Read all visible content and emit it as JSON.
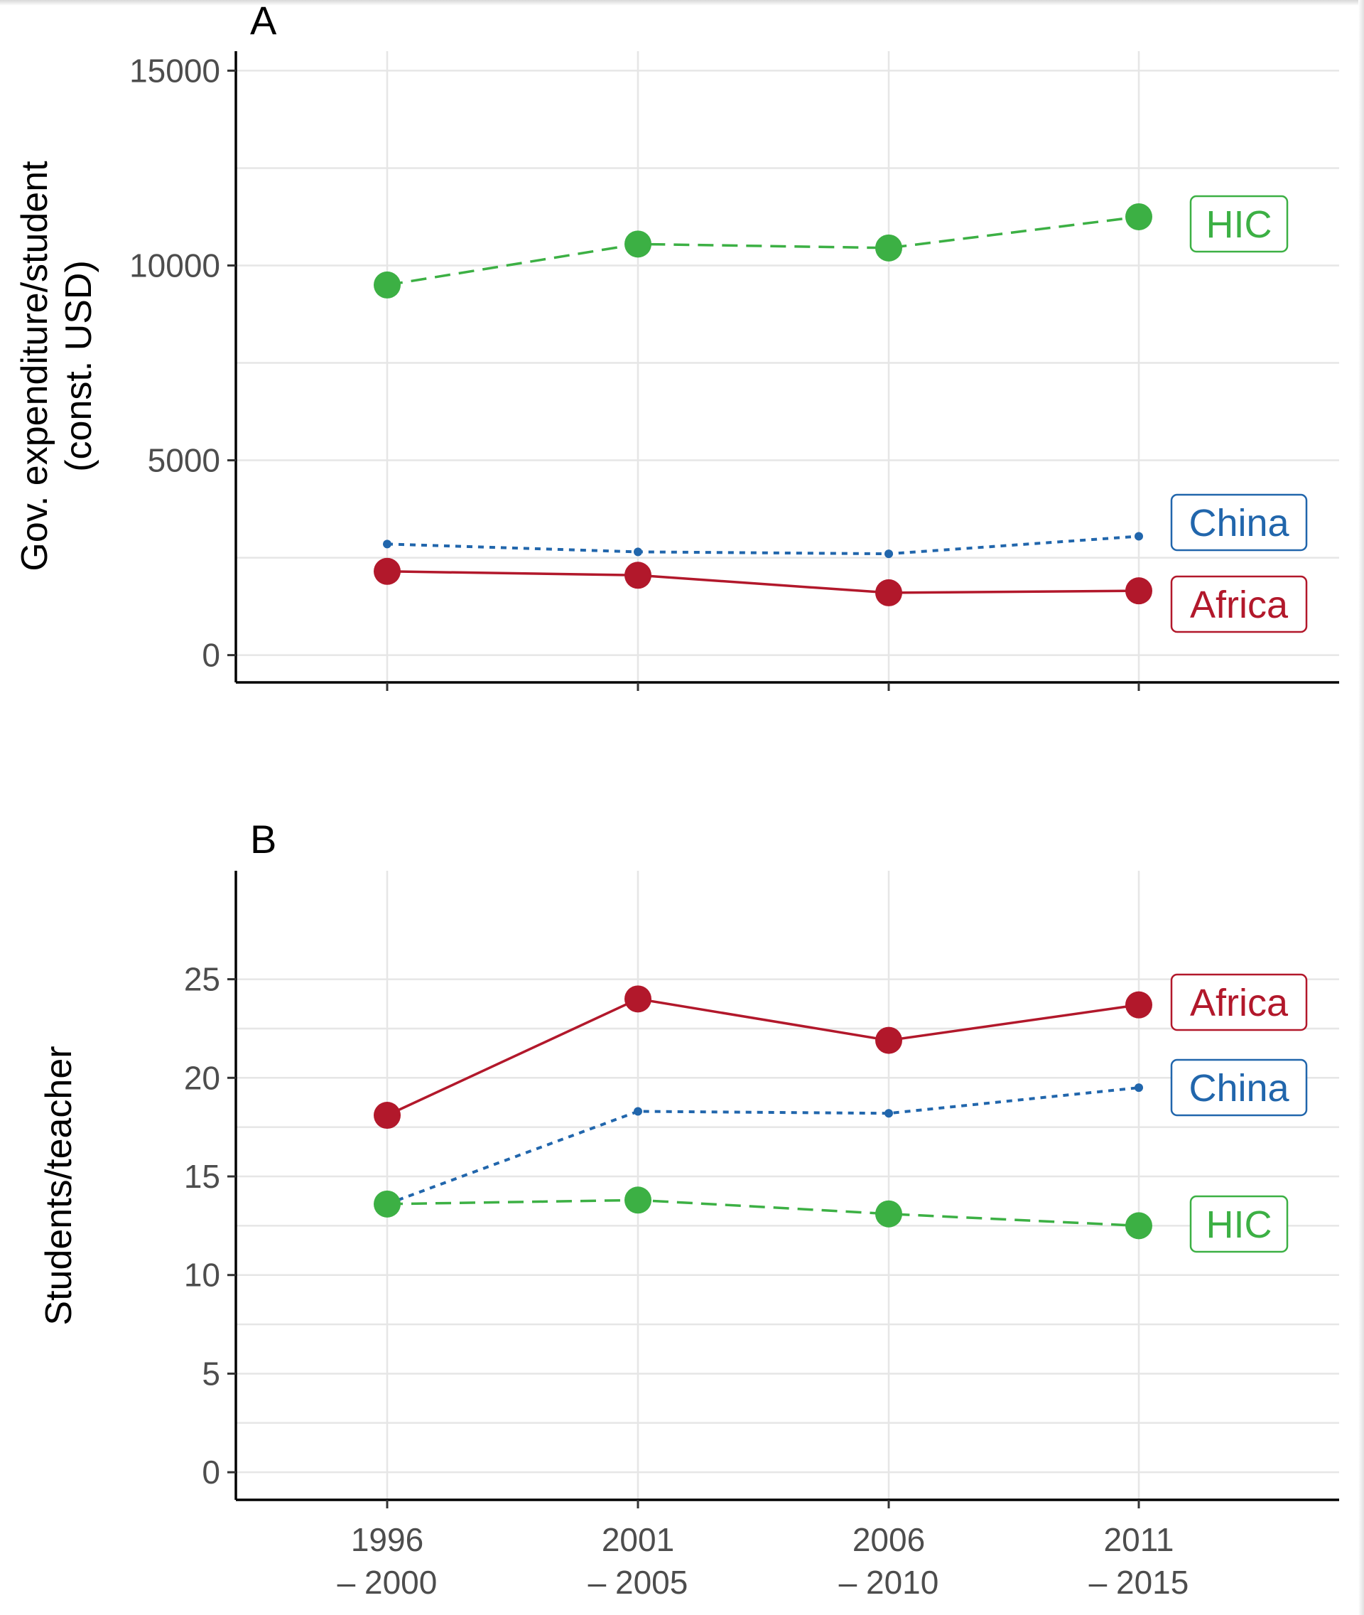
{
  "chart_data": [
    {
      "type": "line",
      "panel": "A",
      "ylabel_lines": [
        "Gov. expenditure/student",
        "(const. USD)"
      ],
      "xlabel": "",
      "categories": [
        [
          "1996",
          "– 2000"
        ],
        [
          "2001",
          "– 2005"
        ],
        [
          "2006",
          "– 2010"
        ],
        [
          "2011",
          "– 2015"
        ]
      ],
      "ylim": [
        -700,
        15500
      ],
      "yticks": [
        0,
        5000,
        10000,
        15000
      ],
      "grid": true,
      "series": [
        {
          "name": "HIC",
          "color": "#3cb044",
          "dash": "dashed",
          "marker": "large",
          "values": [
            9500,
            10550,
            10450,
            11250
          ]
        },
        {
          "name": "China",
          "color": "#2166ac",
          "dash": "dotted",
          "marker": "small",
          "values": [
            2850,
            2650,
            2600,
            3050
          ]
        },
        {
          "name": "Africa",
          "color": "#b2182b",
          "dash": "solid",
          "marker": "large",
          "values": [
            2150,
            2050,
            1600,
            1650
          ]
        }
      ]
    },
    {
      "type": "line",
      "panel": "B",
      "ylabel_lines": [
        "Students/teacher"
      ],
      "xlabel": "",
      "categories": [
        [
          "1996",
          "– 2000"
        ],
        [
          "2001",
          "– 2005"
        ],
        [
          "2006",
          "– 2010"
        ],
        [
          "2011",
          "– 2015"
        ]
      ],
      "ylim": [
        -1.4,
        30.5
      ],
      "yticks": [
        0,
        5,
        10,
        15,
        20,
        25
      ],
      "grid": true,
      "series": [
        {
          "name": "Africa",
          "color": "#b2182b",
          "dash": "solid",
          "marker": "large",
          "values": [
            18.1,
            24.0,
            21.9,
            23.7
          ]
        },
        {
          "name": "China",
          "color": "#2166ac",
          "dash": "dotted",
          "marker": "small",
          "values": [
            13.6,
            18.3,
            18.2,
            19.5
          ]
        },
        {
          "name": "HIC",
          "color": "#3cb044",
          "dash": "dashed",
          "marker": "large",
          "values": [
            13.6,
            13.8,
            13.1,
            12.5
          ]
        }
      ]
    }
  ]
}
